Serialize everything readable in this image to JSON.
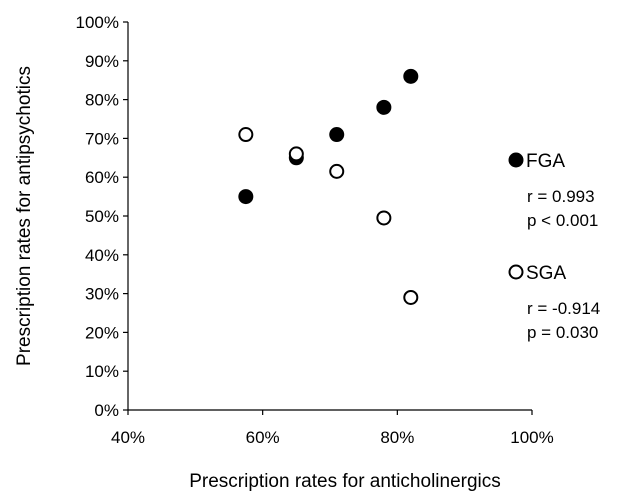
{
  "chart_data": {
    "type": "scatter",
    "xlabel": "Prescription rates for anticholinergics",
    "ylabel": "Prescription rates for antipsychotics",
    "xlim": [
      40,
      100
    ],
    "ylim": [
      0,
      100
    ],
    "x_ticks": [
      "40%",
      "60%",
      "80%",
      "100%"
    ],
    "y_ticks": [
      "0%",
      "10%",
      "20%",
      "30%",
      "40%",
      "50%",
      "60%",
      "70%",
      "80%",
      "90%",
      "100%"
    ],
    "grid": false,
    "legend_position": "right",
    "series": [
      {
        "name": "FGA",
        "marker": "filled-circle",
        "color": "#000000",
        "points": [
          {
            "x": 57.5,
            "y": 55
          },
          {
            "x": 65,
            "y": 65
          },
          {
            "x": 71,
            "y": 71
          },
          {
            "x": 78,
            "y": 78
          },
          {
            "x": 82,
            "y": 86
          }
        ],
        "stats": [
          "r = 0.993",
          "p < 0.001"
        ]
      },
      {
        "name": "SGA",
        "marker": "open-circle",
        "color": "#000000",
        "points": [
          {
            "x": 57.5,
            "y": 71
          },
          {
            "x": 65,
            "y": 66
          },
          {
            "x": 71,
            "y": 61.5
          },
          {
            "x": 78,
            "y": 49.5
          },
          {
            "x": 82,
            "y": 29
          }
        ],
        "stats": [
          "r = -0.914",
          "p = 0.030"
        ]
      }
    ]
  }
}
